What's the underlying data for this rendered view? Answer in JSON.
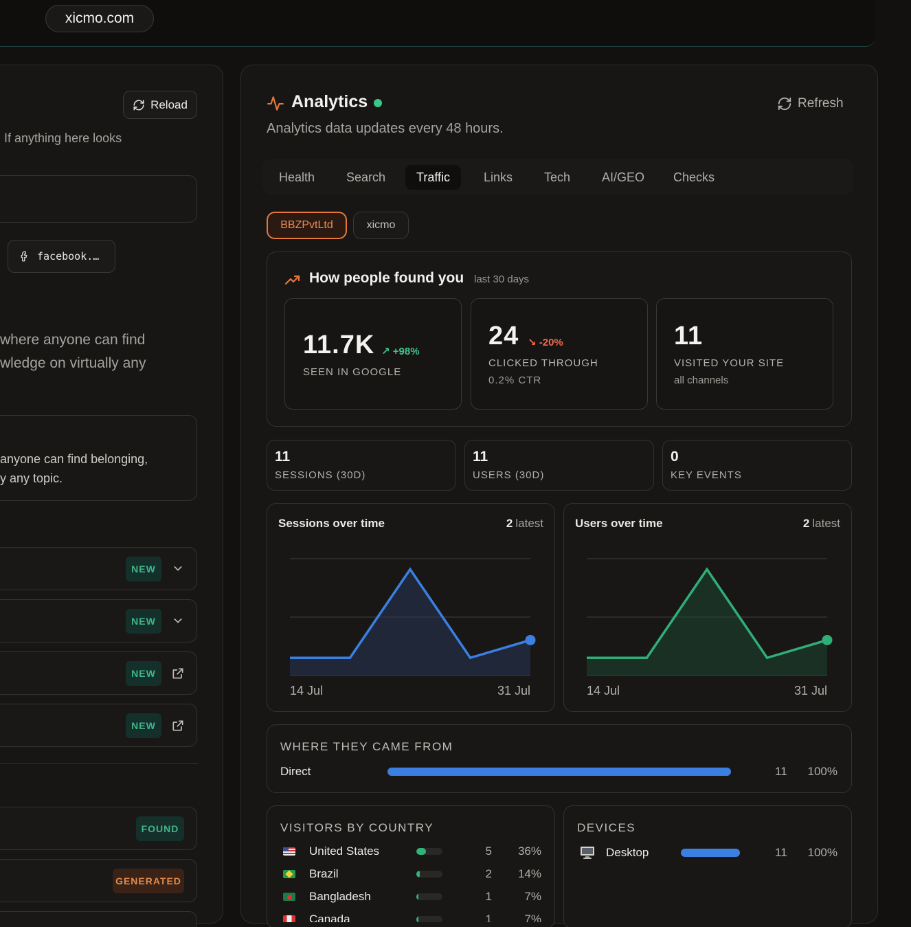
{
  "topbar": {
    "domain": "xicmo.com"
  },
  "left": {
    "reload_label": "Reload",
    "hint_text": "If anything here looks",
    "facebook_label": "facebook.…",
    "description_lines": [
      "where anyone can find",
      "wledge on virtually any"
    ],
    "quote_lines": [
      "anyone can find belonging,",
      "y any topic."
    ],
    "rows": [
      {
        "badge": "NEW",
        "icon": "chevron-down-icon"
      },
      {
        "badge": "NEW",
        "icon": "chevron-down-icon"
      },
      {
        "badge": "NEW",
        "icon": "external-link-icon"
      },
      {
        "badge": "NEW",
        "icon": "external-link-icon"
      }
    ],
    "found_badge": "FOUND",
    "generated_badge": "GENERATED"
  },
  "analytics": {
    "title": "Analytics",
    "subtitle": "Analytics data updates every 48 hours.",
    "refresh_label": "Refresh",
    "tabs": [
      "Health",
      "Search",
      "Traffic",
      "Links",
      "Tech",
      "AI/GEO",
      "Checks"
    ],
    "active_tab": "Traffic",
    "chips": [
      "BBZPvtLtd",
      "xicmo"
    ],
    "found": {
      "title": "How people found you",
      "period": "last 30 days",
      "stats": [
        {
          "value": "11.7K",
          "delta": "+98%",
          "label": "SEEN IN GOOGLE",
          "sub": ""
        },
        {
          "value": "24",
          "delta": "-20%",
          "label": "CLICKED THROUGH",
          "sub": "0.2% CTR"
        },
        {
          "value": "11",
          "delta": "",
          "label": "VISITED YOUR SITE",
          "sub": "all channels"
        }
      ]
    },
    "mini_stats": [
      {
        "value": "11",
        "label": "SESSIONS (30D)"
      },
      {
        "value": "11",
        "label": "USERS (30D)"
      },
      {
        "value": "0",
        "label": "KEY EVENTS"
      }
    ],
    "sources": {
      "title": "WHERE THEY CAME FROM",
      "items": [
        {
          "name": "Direct",
          "count": "11",
          "pct": "100%",
          "fraction": 1.0
        }
      ]
    },
    "countries": {
      "title": "VISITORS BY COUNTRY",
      "items": [
        {
          "name": "United States",
          "count": "5",
          "pct": "36%",
          "fraction": 0.36
        },
        {
          "name": "Brazil",
          "count": "2",
          "pct": "14%",
          "fraction": 0.14
        },
        {
          "name": "Bangladesh",
          "count": "1",
          "pct": "7%",
          "fraction": 0.07
        },
        {
          "name": "Canada",
          "count": "1",
          "pct": "7%",
          "fraction": 0.07
        }
      ]
    },
    "devices": {
      "title": "DEVICES",
      "items": [
        {
          "name": "Desktop",
          "count": "11",
          "pct": "100%",
          "fraction": 1.0
        }
      ]
    }
  },
  "colors": {
    "accent": "#e7783c",
    "up": "#3fc38b",
    "down": "#f0674f",
    "blue": "#3b7fe0",
    "green": "#2fb57a"
  },
  "chart_data": [
    {
      "type": "area",
      "title": "Sessions over time",
      "latest_value": "2",
      "latest_label": "latest",
      "x": [
        "14 Jul",
        "",
        "",
        "",
        "31 Jul"
      ],
      "x_tick_labels": [
        "14 Jul",
        "31 Jul"
      ],
      "values": [
        1,
        1,
        6,
        1,
        2
      ],
      "ylim": [
        0,
        6.6
      ],
      "grid": true
    },
    {
      "type": "area",
      "title": "Users over time",
      "latest_value": "2",
      "latest_label": "latest",
      "x": [
        "14 Jul",
        "",
        "",
        "",
        "31 Jul"
      ],
      "x_tick_labels": [
        "14 Jul",
        "31 Jul"
      ],
      "values": [
        1,
        1,
        6,
        1,
        2
      ],
      "ylim": [
        0,
        6.6
      ],
      "grid": true
    }
  ]
}
